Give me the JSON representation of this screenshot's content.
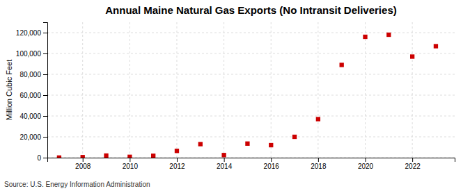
{
  "chart_data": {
    "type": "scatter",
    "title": "Annual Maine Natural Gas Exports (No Intransit Deliveries)",
    "ylabel": "Million Cubic Feet",
    "source": "Source: U.S. Energy Information Administration",
    "x": [
      2007,
      2008,
      2009,
      2010,
      2011,
      2012,
      2013,
      2014,
      2015,
      2016,
      2017,
      2018,
      2019,
      2020,
      2021,
      2022,
      2023
    ],
    "values": [
      100,
      500,
      2000,
      800,
      1800,
      6500,
      13000,
      2500,
      13500,
      12000,
      20000,
      37000,
      89000,
      116000,
      118000,
      97000,
      107000
    ],
    "color": "#cc0000",
    "marker": "square",
    "xlim": [
      2006.5,
      2023.8
    ],
    "xticks": [
      2008,
      2010,
      2012,
      2014,
      2016,
      2018,
      2020,
      2022
    ],
    "ylim": [
      0,
      130000
    ],
    "yticks": [
      0,
      {
        "value": 20000,
        "label": "20,000"
      },
      {
        "value": 40000,
        "label": "40,000"
      },
      {
        "value": 60000,
        "label": "60,000"
      },
      {
        "value": 80000,
        "label": "80,000"
      },
      {
        "value": 100000,
        "label": "100,000"
      },
      {
        "value": 120000,
        "label": "120,000"
      }
    ],
    "grid": true
  }
}
